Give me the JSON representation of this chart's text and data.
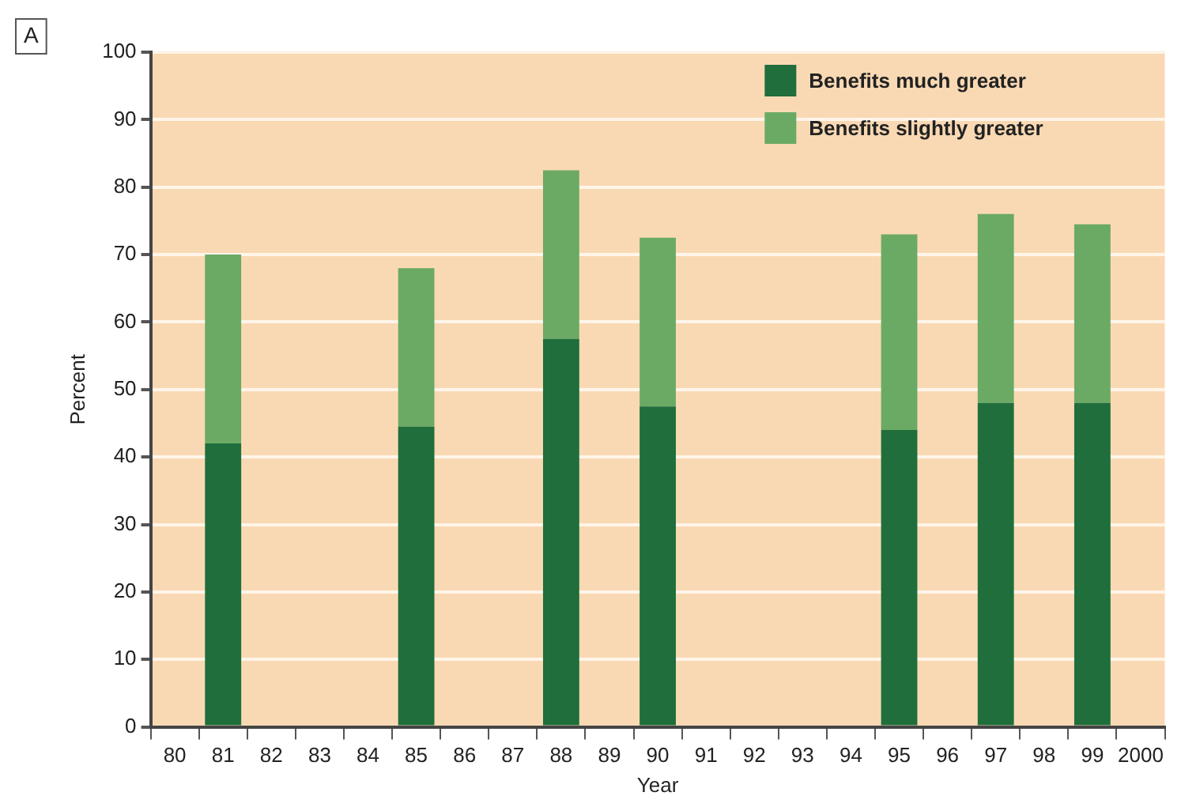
{
  "chart_data": {
    "type": "bar",
    "stacked": true,
    "xlabel": "Year",
    "ylabel": "Percent",
    "annotations": [
      "A"
    ],
    "categories": [
      "80",
      "81",
      "82",
      "83",
      "84",
      "85",
      "86",
      "87",
      "88",
      "89",
      "90",
      "91",
      "92",
      "93",
      "94",
      "95",
      "96",
      "97",
      "98",
      "99",
      "2000"
    ],
    "series": [
      {
        "name": "Benefits much greater",
        "color": "#1f6e3c",
        "values": [
          null,
          42,
          null,
          null,
          null,
          44.5,
          null,
          null,
          57.5,
          null,
          47.5,
          null,
          null,
          null,
          null,
          44,
          null,
          48,
          null,
          48,
          null
        ]
      },
      {
        "name": "Benefits slightly greater",
        "color": "#6aaa64",
        "values": [
          null,
          28,
          null,
          null,
          null,
          23.5,
          null,
          null,
          25,
          null,
          25,
          null,
          null,
          null,
          null,
          29,
          null,
          28,
          null,
          26.5,
          null
        ]
      }
    ],
    "ylim": [
      0,
      100
    ],
    "yticks": [
      0,
      10,
      20,
      30,
      40,
      50,
      60,
      70,
      80,
      90,
      100
    ],
    "grid": "y",
    "legend": "top right"
  }
}
